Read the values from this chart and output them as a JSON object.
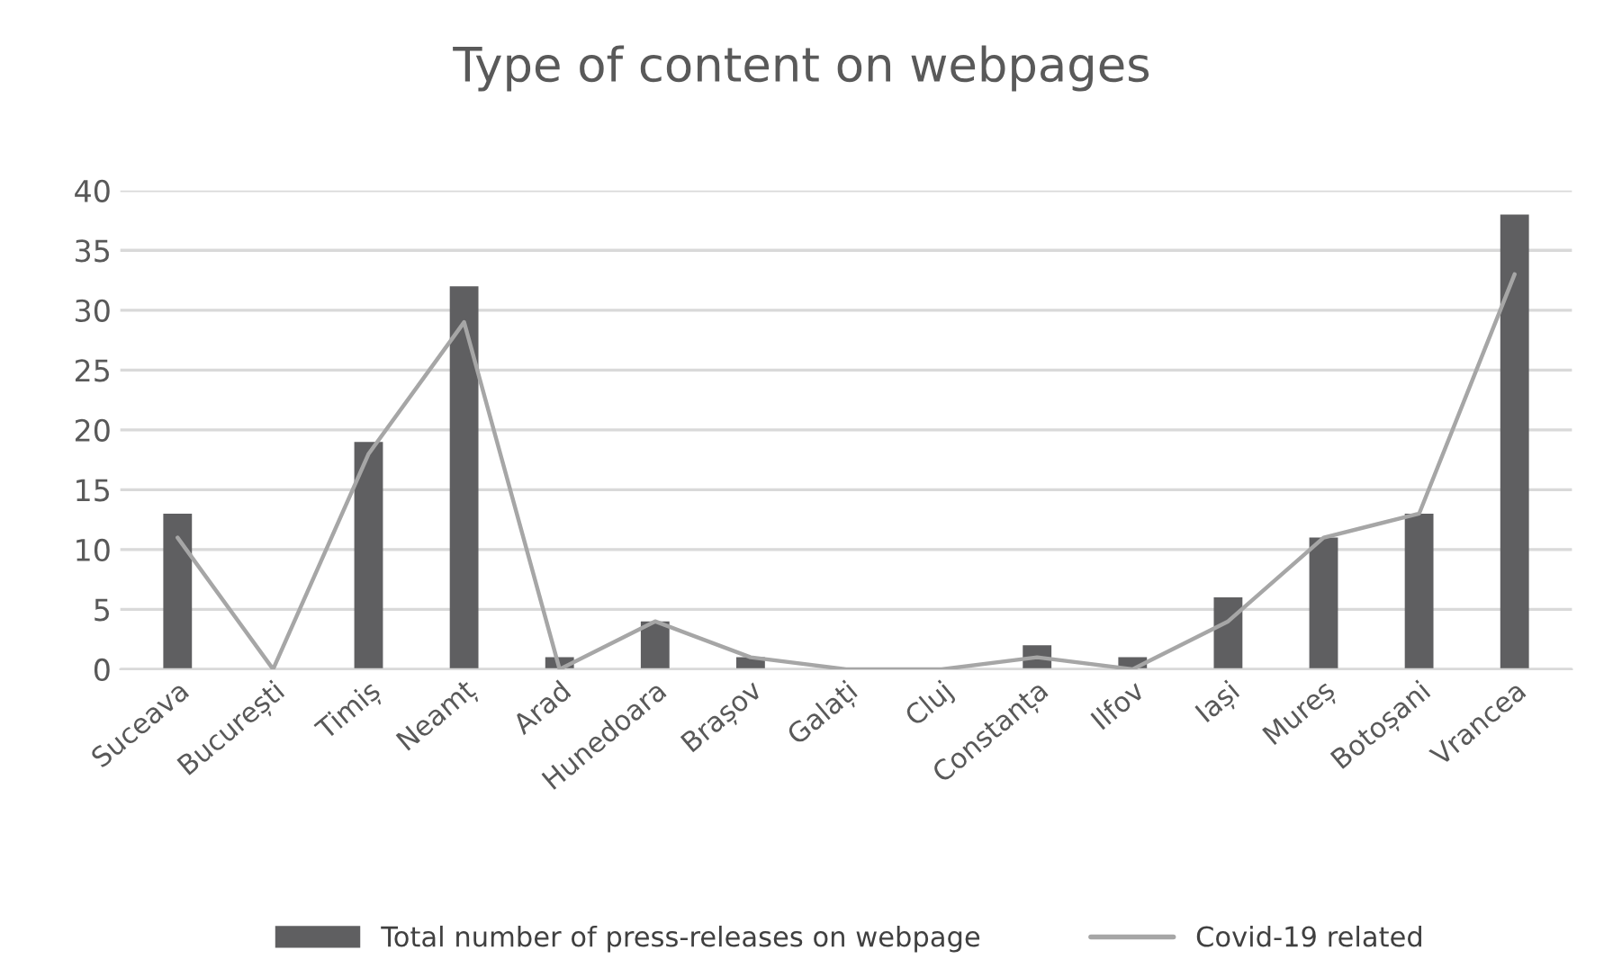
{
  "chart_data": {
    "type": "bar",
    "title": "Type of content on webpages",
    "categories": [
      "Suceava",
      "București",
      "Timiș",
      "Neamț",
      "Arad",
      "Hunedoara",
      "Brașov",
      "Galați",
      "Cluj",
      "Constanța",
      "Ilfov",
      "Iași",
      "Mureș",
      "Botoșani",
      "Vrancea"
    ],
    "series": [
      {
        "name": "Total number of press-releases on webpage",
        "color": "#5f5f61",
        "values": [
          13,
          0,
          19,
          32,
          1,
          4,
          1,
          0,
          0,
          2,
          1,
          6,
          11,
          13,
          38
        ]
      },
      {
        "name": "Covid-19 related",
        "type": "line",
        "color": "#a6a6a6",
        "values": [
          11,
          0,
          18,
          29,
          0,
          4,
          1,
          0,
          0,
          1,
          0,
          4,
          11,
          13,
          33
        ]
      }
    ],
    "ylim": [
      0,
      40
    ],
    "yticks": [
      0,
      5,
      10,
      15,
      20,
      25,
      30,
      35,
      40
    ],
    "grid": "y",
    "legend": "bottom"
  }
}
